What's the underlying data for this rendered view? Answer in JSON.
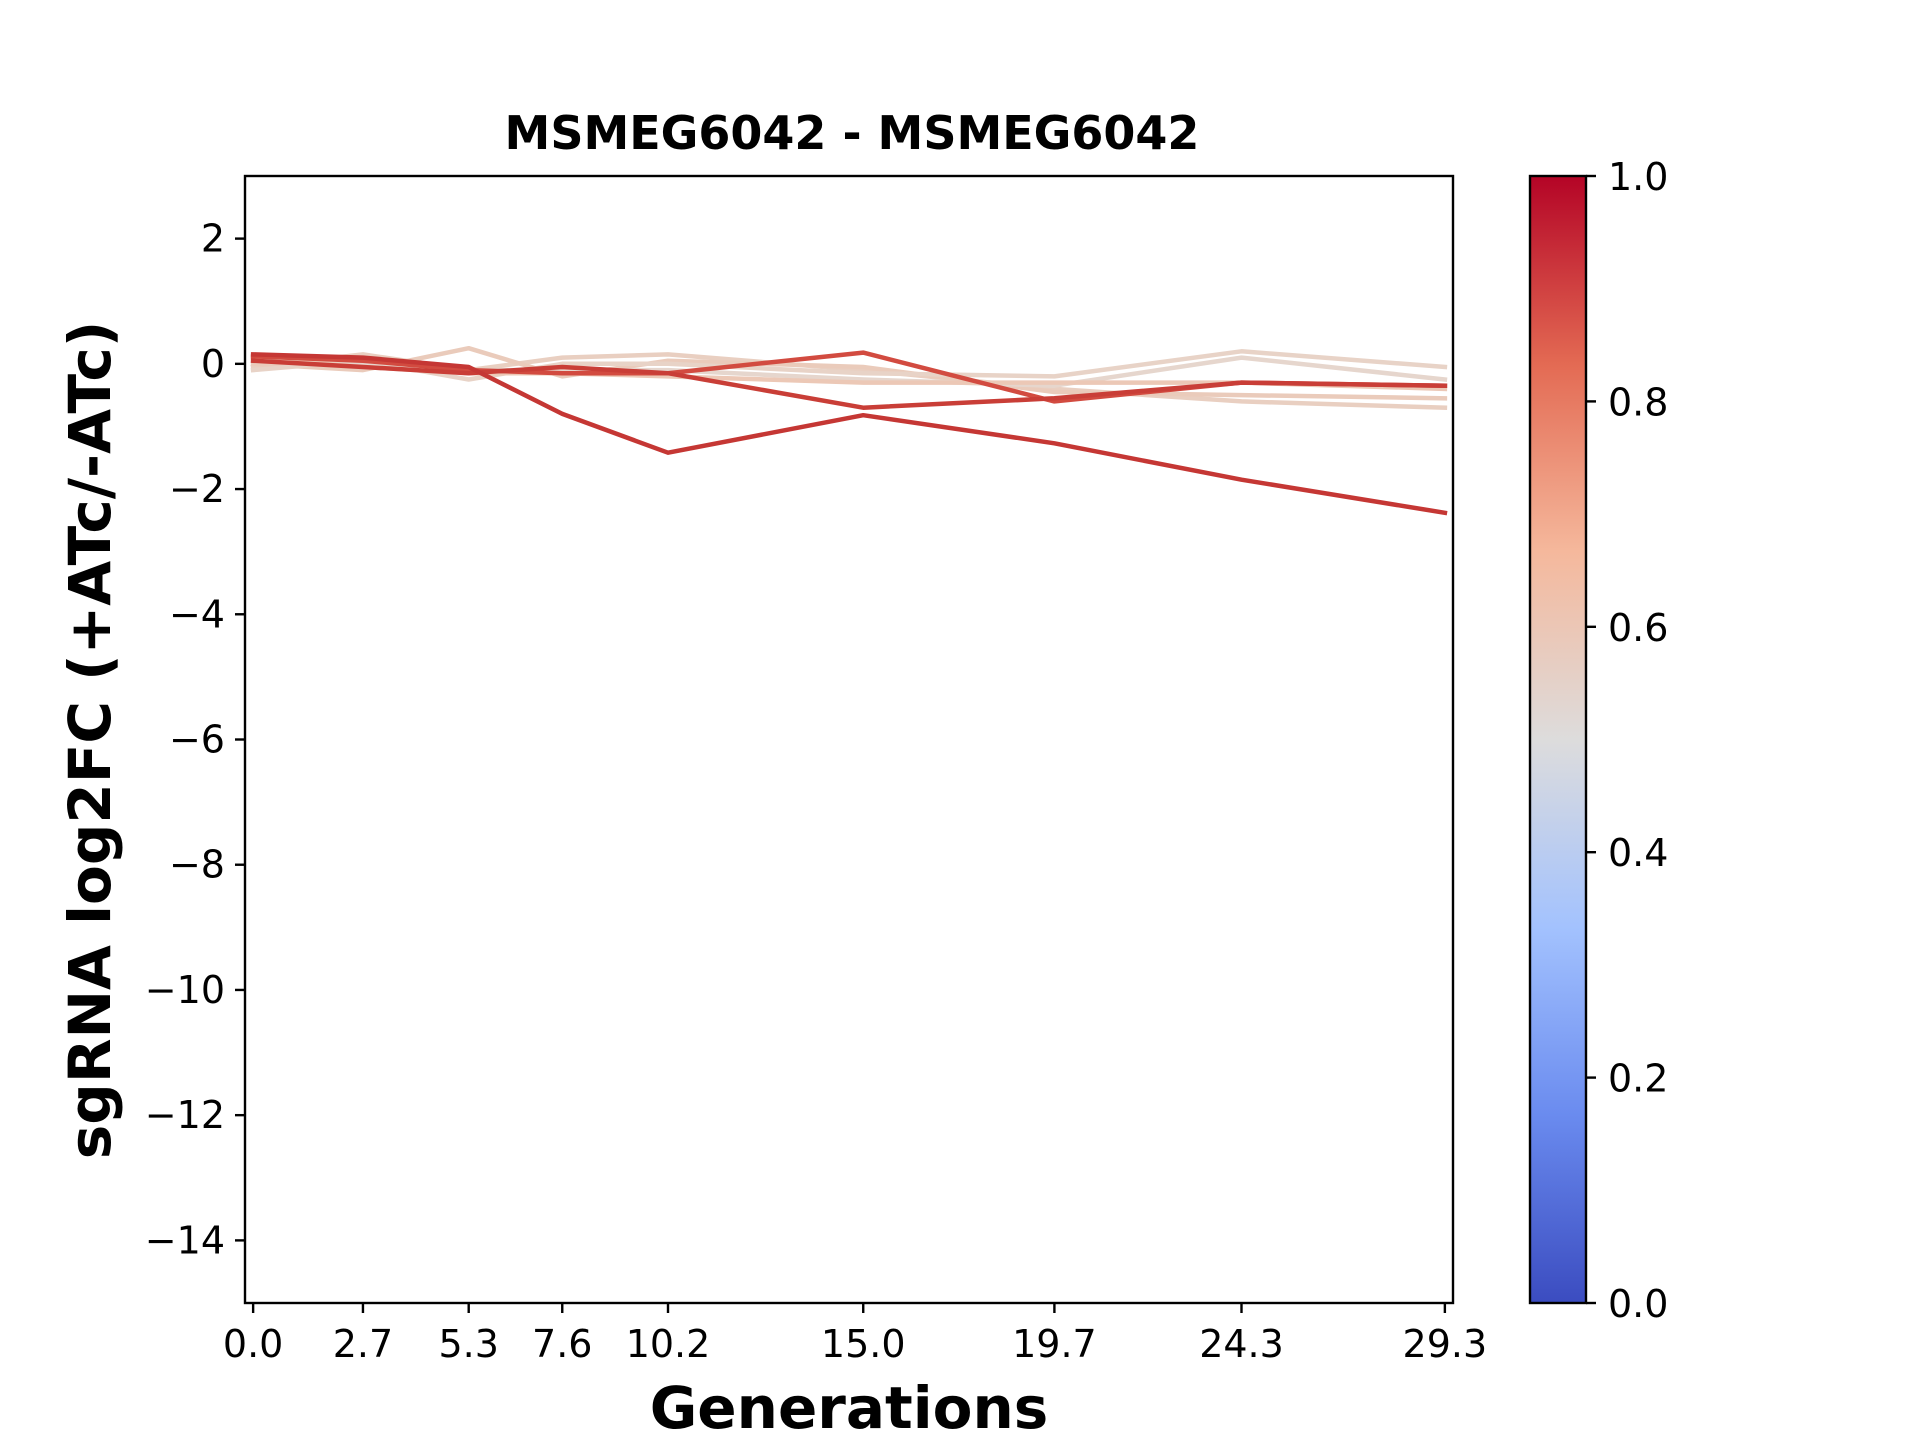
{
  "chart_data": {
    "type": "line",
    "title": "MSMEG6042 - MSMEG6042",
    "xlabel": "Generations",
    "ylabel": "sgRNA log2FC (+ATc/-ATc)",
    "x": [
      0.0,
      2.7,
      5.3,
      7.6,
      10.2,
      15.0,
      19.7,
      24.3,
      29.3
    ],
    "x_tick_labels": [
      "0.0",
      "2.7",
      "5.3",
      "7.6",
      "10.2",
      "15.0",
      "19.7",
      "24.3",
      "29.3"
    ],
    "xlim": [
      -0.2,
      29.5
    ],
    "ylim": [
      -15,
      3
    ],
    "y_ticks": [
      2,
      0,
      -2,
      -4,
      -6,
      -8,
      -10,
      -12,
      -14
    ],
    "y_tick_labels": [
      "2",
      "0",
      "−2",
      "−4",
      "−6",
      "−8",
      "−10",
      "−12",
      "−14"
    ],
    "grid": false,
    "series": [
      {
        "color_value": 0.58,
        "color": "#e9cfc1",
        "values": [
          -0.05,
          0.15,
          -0.1,
          0.1,
          0.15,
          -0.1,
          -0.4,
          -0.6,
          -0.7
        ]
      },
      {
        "color_value": 0.59,
        "color": "#eacbbb",
        "values": [
          0.0,
          -0.1,
          0.25,
          -0.2,
          0.05,
          -0.05,
          -0.45,
          -0.5,
          -0.55
        ]
      },
      {
        "color_value": 0.56,
        "color": "#e8d3c7",
        "values": [
          -0.1,
          0.05,
          -0.25,
          0.0,
          0.0,
          -0.15,
          -0.2,
          0.2,
          -0.05
        ]
      },
      {
        "color_value": 0.55,
        "color": "#e6d6cd",
        "values": [
          0.05,
          0.0,
          -0.1,
          -0.1,
          -0.1,
          -0.25,
          -0.35,
          0.1,
          -0.25
        ]
      },
      {
        "color_value": 0.6,
        "color": "#ecc8b6",
        "values": [
          0.1,
          -0.05,
          -0.15,
          -0.15,
          -0.2,
          -0.3,
          -0.3,
          -0.3,
          -0.4
        ]
      },
      {
        "color_value": 0.88,
        "color": "#d24b40",
        "values": [
          0.12,
          0.05,
          -0.1,
          -0.15,
          -0.15,
          0.18,
          -0.6,
          -0.3,
          -0.35
        ]
      },
      {
        "color_value": 0.91,
        "color": "#c93e37",
        "values": [
          0.05,
          -0.05,
          -0.15,
          -0.05,
          -0.15,
          -0.7,
          -0.55,
          -0.3,
          -0.35
        ]
      },
      {
        "color_value": 0.93,
        "color": "#c53734",
        "values": [
          0.15,
          0.1,
          -0.05,
          -0.8,
          -1.42,
          -0.82,
          -1.27,
          -1.85,
          -2.38
        ]
      }
    ],
    "colorbar": {
      "min": 0.0,
      "max": 1.0,
      "ticks": [
        "0.0",
        "0.2",
        "0.4",
        "0.6",
        "0.8",
        "1.0"
      ],
      "colormap": "coolwarm",
      "stops": [
        "#3b4cc0",
        "#6a8bef",
        "#a3c2fe",
        "#dddcdc",
        "#f5b89c",
        "#e36a53",
        "#b40426"
      ]
    }
  }
}
